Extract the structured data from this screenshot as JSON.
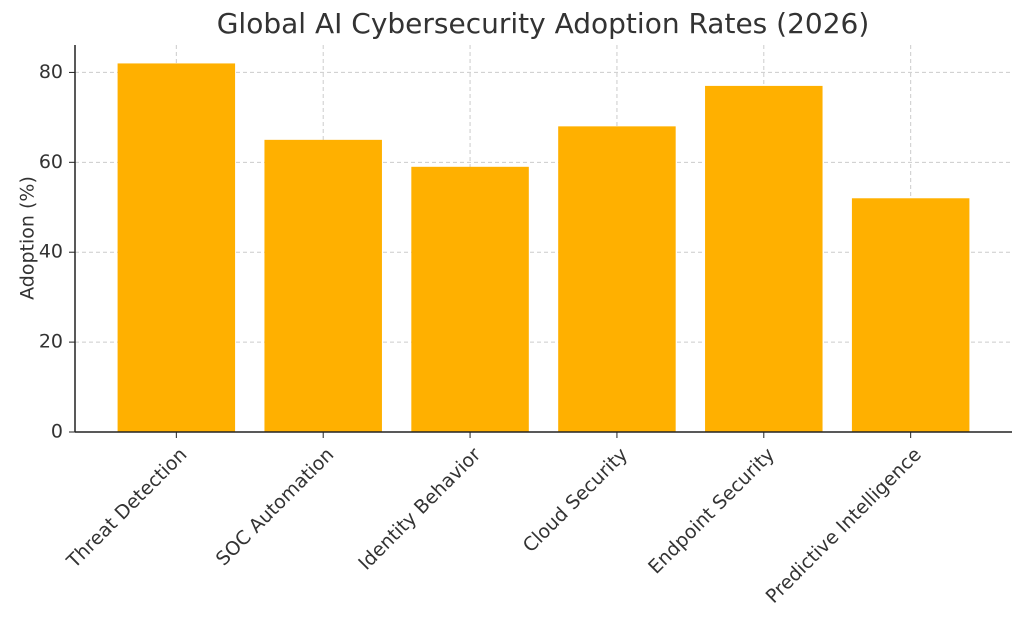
{
  "chart_data": {
    "type": "bar",
    "title": "Global AI Cybersecurity Adoption Rates (2026)",
    "y_label": "Adoption (%)",
    "categories": [
      "Threat Detection",
      "SOC Automation",
      "Identity Behavior",
      "Cloud Security",
      "Endpoint Security",
      "Predictive Intelligence"
    ],
    "values": [
      82,
      65,
      59,
      68,
      77,
      52
    ],
    "color": "#ffb000",
    "ylim": [
      0,
      86.1
    ],
    "yticks": [
      0,
      20,
      40,
      60,
      80
    ],
    "grid": true
  }
}
